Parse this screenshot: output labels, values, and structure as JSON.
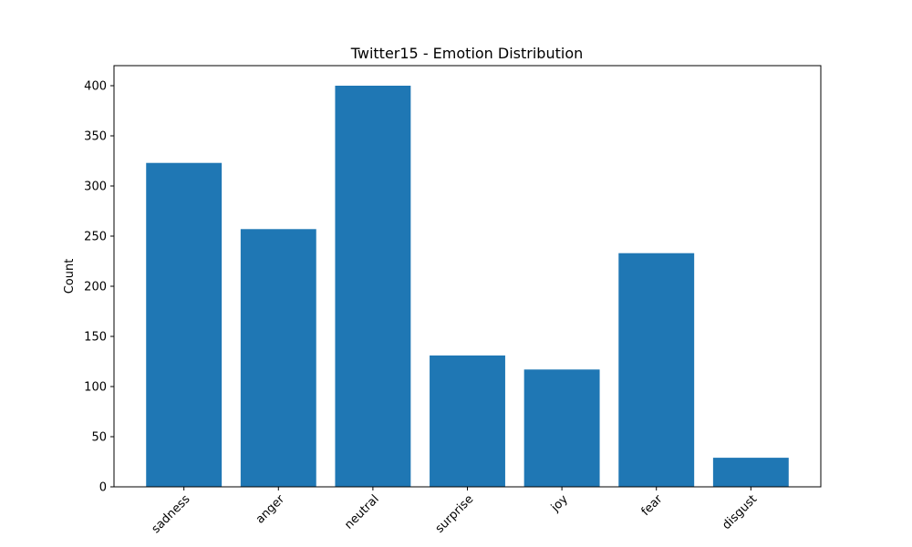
{
  "chart_data": {
    "type": "bar",
    "title": "Twitter15 - Emotion Distribution",
    "xlabel": "",
    "ylabel": "Count",
    "categories": [
      "sadness",
      "anger",
      "neutral",
      "surprise",
      "joy",
      "fear",
      "disgust"
    ],
    "values": [
      323,
      257,
      400,
      131,
      117,
      233,
      29
    ],
    "ylim": [
      0,
      420
    ],
    "yticks": [
      0,
      50,
      100,
      150,
      200,
      250,
      300,
      350,
      400
    ],
    "bar_color": "#1f77b4",
    "grid": false,
    "legend": "none"
  }
}
